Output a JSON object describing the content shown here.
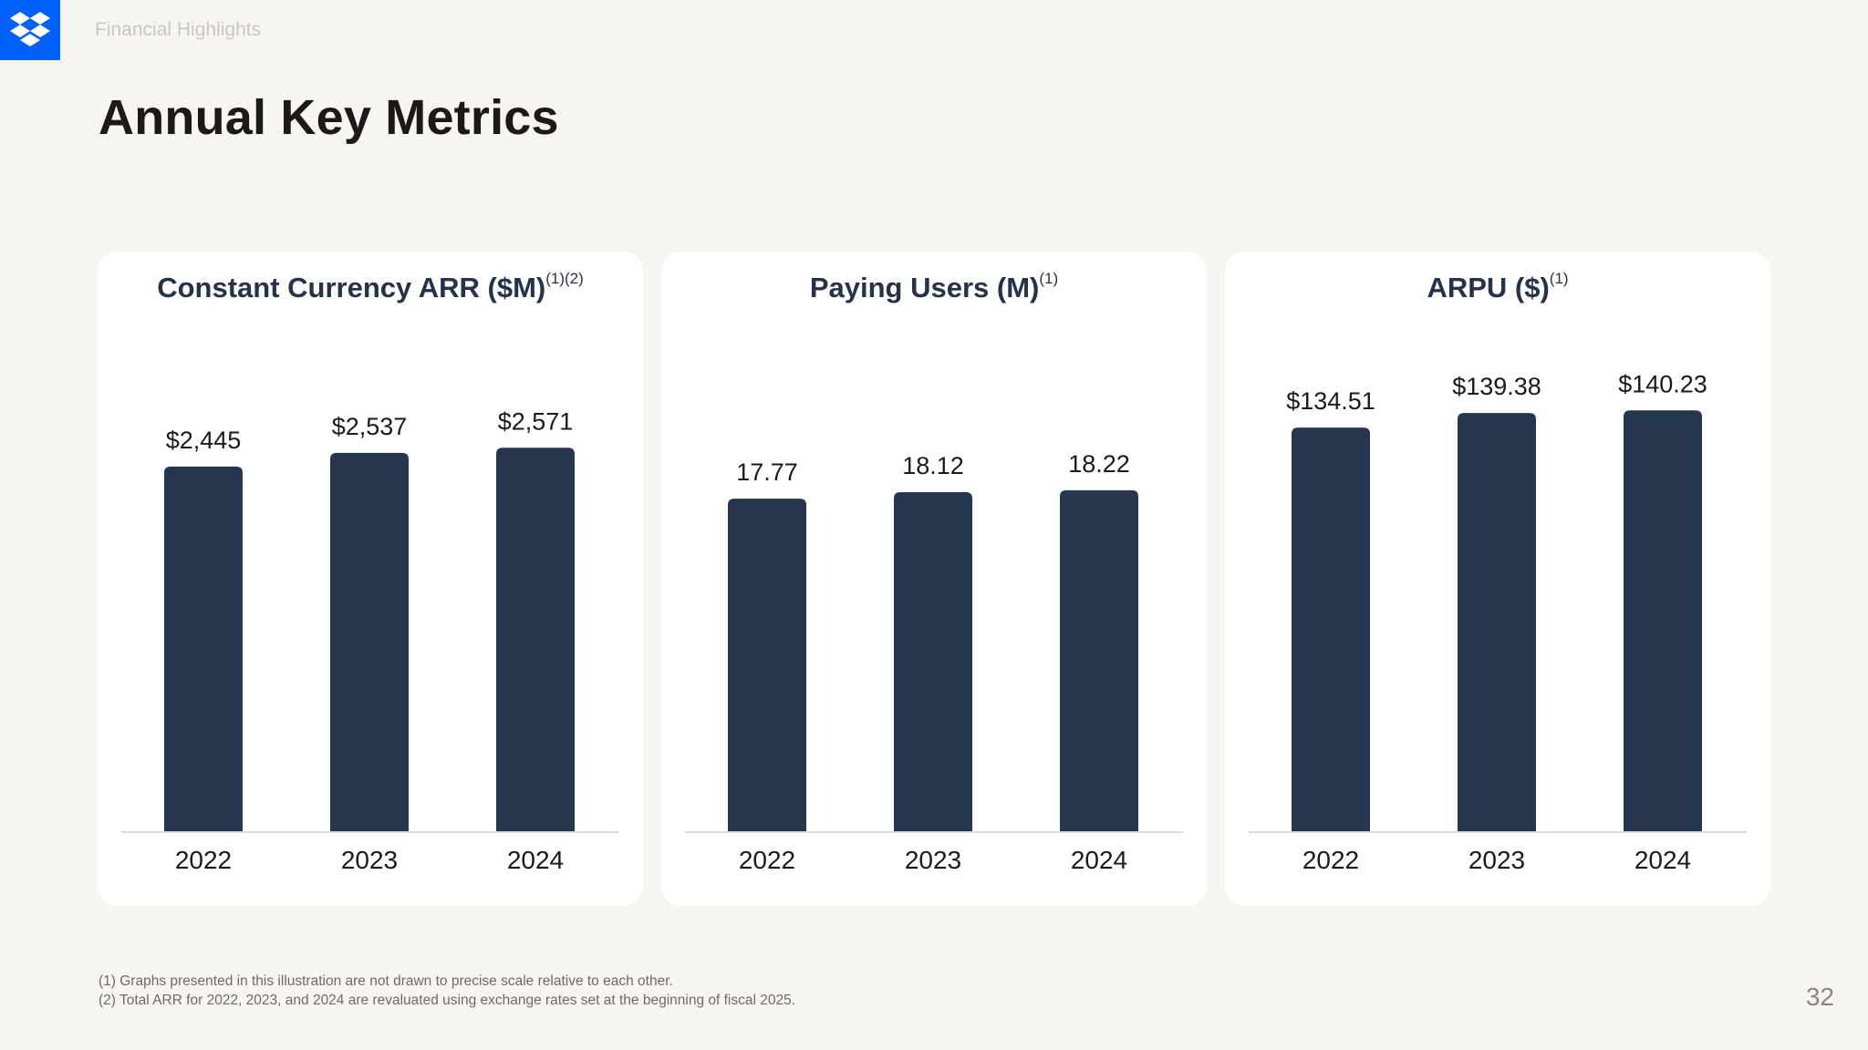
{
  "header": {
    "logo_icon": "dropbox-logo-icon",
    "section_label": "Financial Highlights",
    "title": "Annual Key Metrics"
  },
  "colors": {
    "bar": "#26364f",
    "accent": "#0061fe",
    "axis": "#dedbd7"
  },
  "chart_data": [
    {
      "type": "bar",
      "title": "Constant Currency ARR ($M)",
      "title_superscript": "(1)(2)",
      "categories": [
        "2022",
        "2023",
        "2024"
      ],
      "values": [
        2445,
        2537,
        2571
      ],
      "value_labels": [
        "$2,445",
        "$2,537",
        "$2,571"
      ],
      "ylim": [
        0,
        3300
      ],
      "grid": false,
      "legend": "none"
    },
    {
      "type": "bar",
      "title": "Paying Users (M)",
      "title_superscript": "(1)",
      "categories": [
        "2022",
        "2023",
        "2024"
      ],
      "values": [
        17.77,
        18.12,
        18.22
      ],
      "value_labels": [
        "17.77",
        "18.12",
        "18.22"
      ],
      "ylim": [
        0,
        26.3
      ],
      "grid": false,
      "legend": "none"
    },
    {
      "type": "bar",
      "title": "ARPU ($)",
      "title_superscript": "(1)",
      "categories": [
        "2022",
        "2023",
        "2024"
      ],
      "values": [
        134.51,
        139.38,
        140.23
      ],
      "value_labels": [
        "$134.51",
        "$139.38",
        "$140.23"
      ],
      "ylim": [
        0,
        164
      ],
      "grid": false,
      "legend": "none"
    }
  ],
  "footnotes": [
    "(1) Graphs presented in this illustration are not drawn to precise scale relative to each other.",
    "(2) Total ARR for 2022, 2023, and 2024 are revaluated using exchange rates set at the beginning of fiscal 2025."
  ],
  "page_number": "32"
}
